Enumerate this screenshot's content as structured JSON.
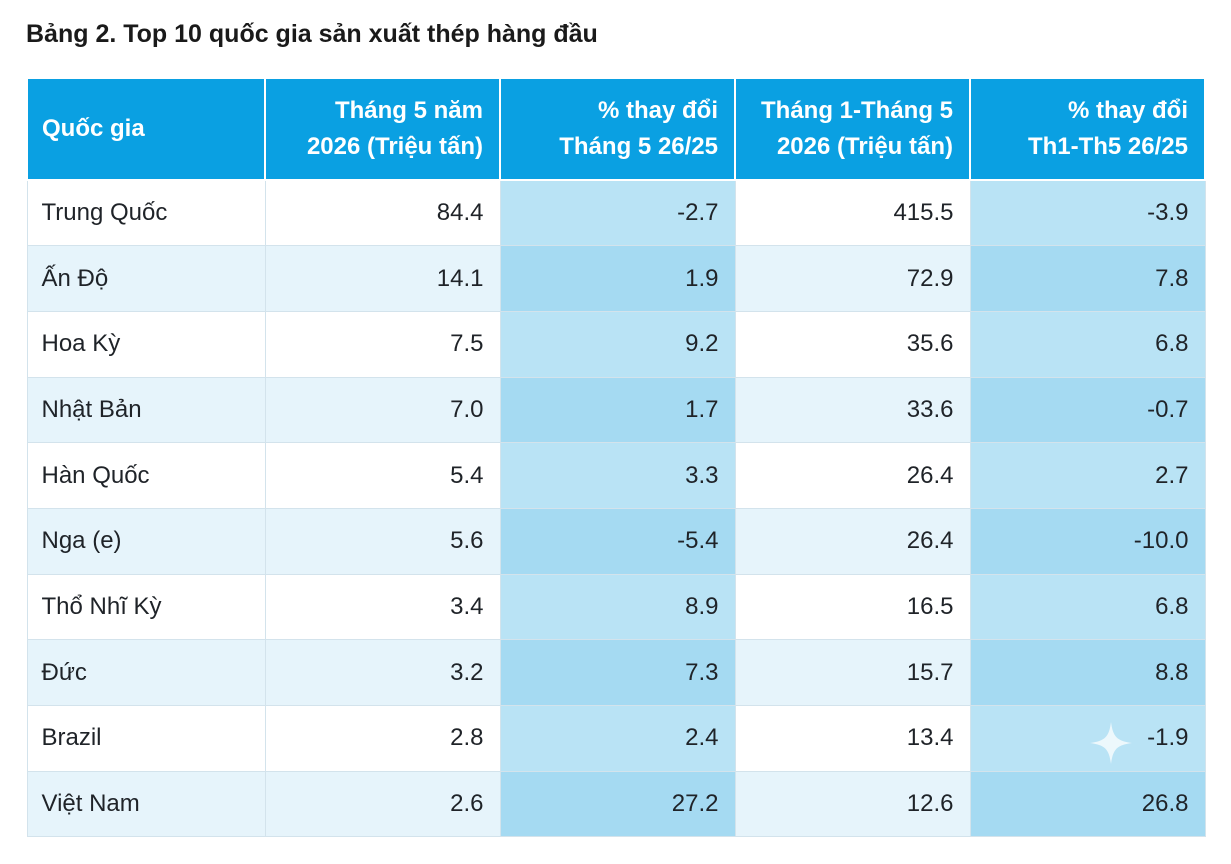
{
  "title": "Bảng 2. Top 10 quốc gia sản xuất thép hàng đầu",
  "header": {
    "country": "Quốc gia",
    "may_line1": "Tháng 5 năm",
    "may_line2": "2026 (Triệu tấn)",
    "may_chg_line1": "% thay đổi",
    "may_chg_line2": "Tháng 5 26/25",
    "ytd_line1": "Tháng 1-Tháng 5",
    "ytd_line2": "2026 (Triệu tấn)",
    "ytd_chg_line1": "% thay đổi",
    "ytd_chg_line2": "Th1-Th5 26/25"
  },
  "rows": [
    {
      "country": "Trung Quốc",
      "may": "84.4",
      "may_chg": "-2.7",
      "ytd": "415.5",
      "ytd_chg": "-3.9"
    },
    {
      "country": "Ấn Độ",
      "may": "14.1",
      "may_chg": "1.9",
      "ytd": "72.9",
      "ytd_chg": "7.8"
    },
    {
      "country": "Hoa Kỳ",
      "may": "7.5",
      "may_chg": "9.2",
      "ytd": "35.6",
      "ytd_chg": "6.8"
    },
    {
      "country": "Nhật Bản",
      "may": "7.0",
      "may_chg": "1.7",
      "ytd": "33.6",
      "ytd_chg": "-0.7"
    },
    {
      "country": "Hàn Quốc",
      "may": "5.4",
      "may_chg": "3.3",
      "ytd": "26.4",
      "ytd_chg": "2.7"
    },
    {
      "country": "Nga (e)",
      "may": "5.6",
      "may_chg": "-5.4",
      "ytd": "26.4",
      "ytd_chg": "-10.0"
    },
    {
      "country": "Thổ Nhĩ Kỳ",
      "may": "3.4",
      "may_chg": "8.9",
      "ytd": "16.5",
      "ytd_chg": "6.8"
    },
    {
      "country": "Đức",
      "may": "3.2",
      "may_chg": "7.3",
      "ytd": "15.7",
      "ytd_chg": "8.8"
    },
    {
      "country": "Brazil",
      "may": "2.8",
      "may_chg": "2.4",
      "ytd": "13.4",
      "ytd_chg": "-1.9"
    },
    {
      "country": "Việt Nam",
      "may": "2.6",
      "may_chg": "27.2",
      "ytd": "12.6",
      "ytd_chg": "26.8"
    }
  ],
  "colors": {
    "header_bg": "#0aa0e2",
    "row_plain_odd": "#ffffff",
    "row_plain_even": "#e6f4fb",
    "row_shade_odd": "#b9e3f5",
    "row_shade_even": "#a5daf2"
  },
  "icons": {
    "watermark": "sparkle-icon"
  }
}
